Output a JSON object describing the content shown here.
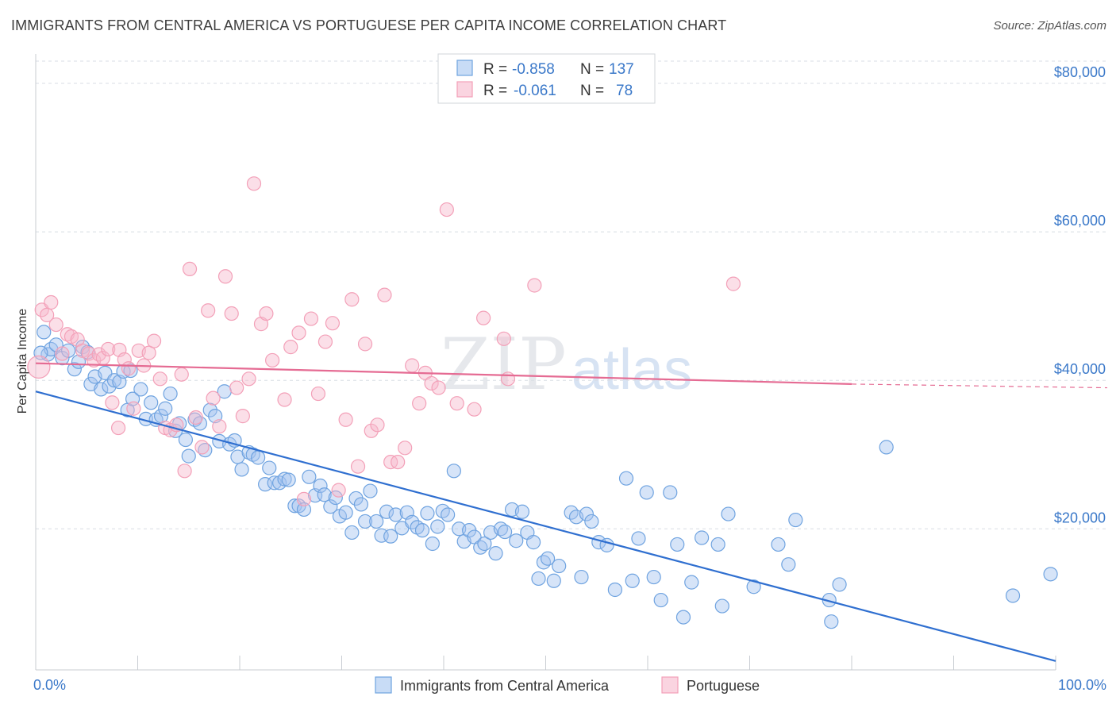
{
  "header": {
    "title": "IMMIGRANTS FROM CENTRAL AMERICA VS PORTUGUESE PER CAPITA INCOME CORRELATION CHART",
    "source": "Source: ZipAtlas.com"
  },
  "legend_top": {
    "rows": [
      {
        "r_label": "R =",
        "r_value": "-0.858",
        "n_label": "N =",
        "n_value": "137"
      },
      {
        "r_label": "R =",
        "r_value": "-0.061",
        "n_label": "N =",
        "n_value": "78"
      }
    ]
  },
  "watermark": {
    "zip": "ZIP",
    "atlas": "atlas"
  },
  "chart_data": {
    "type": "scatter",
    "title": "IMMIGRANTS FROM CENTRAL AMERICA VS PORTUGUESE PER CAPITA INCOME CORRELATION CHART",
    "xlabel": "",
    "ylabel": "Per Capita Income",
    "xlim": [
      0,
      100
    ],
    "ylim": [
      1000,
      83000
    ],
    "x_tick_labels": [
      "0.0%",
      "100.0%"
    ],
    "y_ticks": [
      {
        "value": 20000,
        "label": "$20,000"
      },
      {
        "value": 40000,
        "label": "$40,000"
      },
      {
        "value": 60000,
        "label": "$60,000"
      },
      {
        "value": 80000,
        "label": "$80,000"
      }
    ],
    "grid": "horizontal dashed",
    "legend_position": "bottom-center",
    "series": [
      {
        "name": "Immigrants from Central America",
        "color": "#6fa3e0",
        "fill": "rgba(164,196,240,0.45)",
        "line_color": "#2f6fd0",
        "R": -0.858,
        "N": 137,
        "trend": {
          "x0": 0,
          "y0": 38500,
          "x1": 100,
          "y1": 2200
        },
        "points": [
          [
            0.8,
            46500
          ],
          [
            1.2,
            43500
          ],
          [
            1.5,
            44200
          ],
          [
            2.0,
            44800
          ],
          [
            2.6,
            43000
          ],
          [
            3.2,
            44000
          ],
          [
            3.8,
            41500
          ],
          [
            4.2,
            42500
          ],
          [
            4.6,
            44500
          ],
          [
            5.1,
            43800
          ],
          [
            5.4,
            39500
          ],
          [
            5.8,
            40500
          ],
          [
            6.4,
            38800
          ],
          [
            6.8,
            41000
          ],
          [
            7.2,
            39200
          ],
          [
            7.7,
            40000
          ],
          [
            8.2,
            39800
          ],
          [
            8.6,
            41200
          ],
          [
            9.0,
            36000
          ],
          [
            9.5,
            37500
          ],
          [
            10.3,
            38800
          ],
          [
            10.8,
            34800
          ],
          [
            11.3,
            37000
          ],
          [
            11.8,
            34700
          ],
          [
            12.3,
            35200
          ],
          [
            12.7,
            36200
          ],
          [
            13.2,
            38200
          ],
          [
            13.7,
            33200
          ],
          [
            14.1,
            34200
          ],
          [
            14.7,
            32000
          ],
          [
            15.0,
            29800
          ],
          [
            15.6,
            34700
          ],
          [
            16.1,
            34200
          ],
          [
            16.6,
            30600
          ],
          [
            17.1,
            36000
          ],
          [
            17.6,
            35200
          ],
          [
            18.0,
            31800
          ],
          [
            18.5,
            38500
          ],
          [
            19.0,
            31400
          ],
          [
            19.5,
            31900
          ],
          [
            19.8,
            29700
          ],
          [
            20.2,
            28000
          ],
          [
            20.9,
            30300
          ],
          [
            21.3,
            30000
          ],
          [
            21.8,
            29600
          ],
          [
            22.5,
            26000
          ],
          [
            22.9,
            28200
          ],
          [
            23.4,
            26200
          ],
          [
            23.9,
            26200
          ],
          [
            24.4,
            26700
          ],
          [
            24.8,
            26600
          ],
          [
            25.4,
            23100
          ],
          [
            25.8,
            23100
          ],
          [
            26.3,
            22600
          ],
          [
            26.8,
            27000
          ],
          [
            27.4,
            24500
          ],
          [
            27.9,
            25800
          ],
          [
            28.3,
            24600
          ],
          [
            28.9,
            23000
          ],
          [
            29.4,
            24200
          ],
          [
            29.8,
            21700
          ],
          [
            30.4,
            22200
          ],
          [
            31.0,
            19500
          ],
          [
            31.4,
            24100
          ],
          [
            31.9,
            23300
          ],
          [
            32.3,
            21000
          ],
          [
            32.8,
            25100
          ],
          [
            33.4,
            21000
          ],
          [
            33.9,
            19100
          ],
          [
            34.4,
            22300
          ],
          [
            34.8,
            19000
          ],
          [
            35.3,
            21900
          ],
          [
            35.9,
            20100
          ],
          [
            36.4,
            22200
          ],
          [
            36.9,
            20900
          ],
          [
            37.4,
            20200
          ],
          [
            37.9,
            19800
          ],
          [
            38.4,
            22100
          ],
          [
            38.9,
            18000
          ],
          [
            39.4,
            20300
          ],
          [
            39.9,
            22400
          ],
          [
            40.4,
            21900
          ],
          [
            41.0,
            27800
          ],
          [
            41.5,
            20000
          ],
          [
            42.0,
            18300
          ],
          [
            42.5,
            19800
          ],
          [
            43.0,
            18900
          ],
          [
            43.6,
            17500
          ],
          [
            44.0,
            18000
          ],
          [
            44.6,
            19500
          ],
          [
            45.1,
            16700
          ],
          [
            45.6,
            20000
          ],
          [
            46.0,
            19600
          ],
          [
            46.7,
            22600
          ],
          [
            47.1,
            18400
          ],
          [
            47.7,
            22300
          ],
          [
            48.2,
            19500
          ],
          [
            48.8,
            18200
          ],
          [
            49.3,
            13300
          ],
          [
            49.8,
            15500
          ],
          [
            50.2,
            16000
          ],
          [
            50.8,
            13000
          ],
          [
            51.3,
            15000
          ],
          [
            52.5,
            22200
          ],
          [
            53.0,
            21600
          ],
          [
            53.5,
            13500
          ],
          [
            54.0,
            22000
          ],
          [
            54.5,
            21000
          ],
          [
            55.2,
            18200
          ],
          [
            56.0,
            17800
          ],
          [
            56.8,
            11800
          ],
          [
            57.9,
            26800
          ],
          [
            58.5,
            13000
          ],
          [
            59.1,
            18700
          ],
          [
            59.9,
            24900
          ],
          [
            60.6,
            13500
          ],
          [
            61.3,
            10400
          ],
          [
            62.2,
            24900
          ],
          [
            62.9,
            17900
          ],
          [
            63.5,
            8100
          ],
          [
            64.3,
            12800
          ],
          [
            65.3,
            18800
          ],
          [
            66.9,
            17900
          ],
          [
            67.3,
            9600
          ],
          [
            67.9,
            22000
          ],
          [
            70.4,
            12200
          ],
          [
            72.8,
            17900
          ],
          [
            73.8,
            15200
          ],
          [
            74.5,
            21200
          ],
          [
            77.8,
            10400
          ],
          [
            78.0,
            7500
          ],
          [
            78.8,
            12500
          ],
          [
            83.4,
            31000
          ],
          [
            95.8,
            11000
          ],
          [
            99.5,
            13900
          ],
          [
            0.5,
            43700
          ],
          [
            9.3,
            41300
          ]
        ]
      },
      {
        "name": "Portuguese",
        "color": "#f3a0b8",
        "fill": "rgba(246,184,203,0.45)",
        "line_color": "#e56b93",
        "R": -0.061,
        "N": 78,
        "trend": {
          "x0": 0,
          "y0": 42300,
          "x1": 80,
          "y1": 39500,
          "dash_to": 100,
          "dash_y": 39000
        },
        "points": [
          [
            0.6,
            49500
          ],
          [
            1.1,
            48800
          ],
          [
            1.5,
            50500
          ],
          [
            2.0,
            47500
          ],
          [
            2.6,
            43600
          ],
          [
            3.1,
            46200
          ],
          [
            3.5,
            45900
          ],
          [
            4.1,
            45500
          ],
          [
            4.6,
            44000
          ],
          [
            5.2,
            43600
          ],
          [
            5.7,
            42700
          ],
          [
            6.2,
            43500
          ],
          [
            6.6,
            43000
          ],
          [
            7.1,
            44200
          ],
          [
            7.5,
            37000
          ],
          [
            8.2,
            44100
          ],
          [
            8.7,
            42800
          ],
          [
            9.1,
            41600
          ],
          [
            9.6,
            36200
          ],
          [
            10.1,
            44000
          ],
          [
            10.6,
            42000
          ],
          [
            11.1,
            43700
          ],
          [
            11.6,
            45300
          ],
          [
            12.2,
            40200
          ],
          [
            12.7,
            33600
          ],
          [
            13.2,
            33300
          ],
          [
            13.8,
            34000
          ],
          [
            14.3,
            40800
          ],
          [
            14.6,
            27800
          ],
          [
            15.1,
            55000
          ],
          [
            15.7,
            35000
          ],
          [
            16.3,
            31000
          ],
          [
            16.9,
            49400
          ],
          [
            17.4,
            37600
          ],
          [
            18.0,
            33800
          ],
          [
            18.6,
            54000
          ],
          [
            19.2,
            49000
          ],
          [
            19.7,
            39000
          ],
          [
            20.3,
            35200
          ],
          [
            20.9,
            40200
          ],
          [
            21.4,
            66500
          ],
          [
            22.1,
            47600
          ],
          [
            22.6,
            49000
          ],
          [
            23.2,
            42700
          ],
          [
            24.4,
            37400
          ],
          [
            25.0,
            44500
          ],
          [
            25.8,
            46400
          ],
          [
            26.3,
            24000
          ],
          [
            27.0,
            48300
          ],
          [
            27.7,
            38200
          ],
          [
            28.4,
            45200
          ],
          [
            29.1,
            47700
          ],
          [
            29.7,
            25200
          ],
          [
            30.4,
            34700
          ],
          [
            31.0,
            50900
          ],
          [
            31.6,
            28400
          ],
          [
            32.3,
            44900
          ],
          [
            32.9,
            33200
          ],
          [
            33.5,
            34000
          ],
          [
            34.2,
            51500
          ],
          [
            34.8,
            29000
          ],
          [
            35.5,
            29000
          ],
          [
            36.2,
            30900
          ],
          [
            36.9,
            42000
          ],
          [
            37.6,
            36900
          ],
          [
            38.2,
            41000
          ],
          [
            38.8,
            39600
          ],
          [
            39.5,
            39000
          ],
          [
            40.3,
            63000
          ],
          [
            41.3,
            36900
          ],
          [
            43.0,
            36100
          ],
          [
            43.9,
            48400
          ],
          [
            45.9,
            45600
          ],
          [
            46.3,
            40200
          ],
          [
            48.9,
            52800
          ],
          [
            68.4,
            53000
          ],
          [
            0.3,
            41800
          ],
          [
            8.1,
            33600
          ]
        ]
      }
    ]
  },
  "legend_bottom": {
    "items": [
      "Immigrants from Central America",
      "Portuguese"
    ]
  },
  "colors": {
    "blue_accent": "#3a78c9",
    "pink_accent": "#e56b93",
    "grid": "#d8dde4"
  }
}
